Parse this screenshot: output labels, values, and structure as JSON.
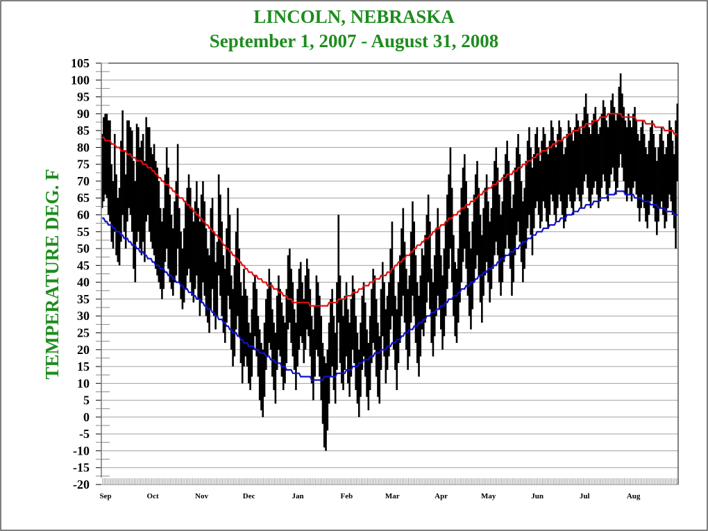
{
  "chart_data": {
    "type": "bar",
    "title": "LINCOLN, NEBRASKA",
    "subtitle": "September 1, 2007 - August 31,  2008",
    "ylabel": "TEMPERATURE DEG. F",
    "xlabel": "",
    "ylim": [
      -20,
      105
    ],
    "ytick_step": 5,
    "grid": true,
    "start_date": "2007-09-01",
    "months": [
      "Sep",
      "Oct",
      "Nov",
      "Dec",
      "Jan",
      "Feb",
      "Mar",
      "Apr",
      "May",
      "Jun",
      "Jul",
      "Aug"
    ],
    "month_days": [
      30,
      31,
      30,
      31,
      31,
      29,
      31,
      30,
      31,
      30,
      31,
      31
    ],
    "colors": {
      "title": "#1e8c1e",
      "daily_range": "#000000",
      "normal_high": "#e01010",
      "normal_low": "#1010c8",
      "grid": "#a0a0a0"
    },
    "daily_high": [
      84,
      89,
      90,
      90,
      88,
      88,
      75,
      70,
      84,
      72,
      65,
      68,
      82,
      91,
      79,
      72,
      88,
      88,
      86,
      85,
      76,
      70,
      87,
      86,
      80,
      82,
      84,
      76,
      89,
      86,
      86,
      80,
      78,
      81,
      76,
      74,
      70,
      62,
      58,
      62,
      72,
      80,
      74,
      66,
      60,
      56,
      64,
      70,
      81,
      62,
      55,
      50,
      56,
      64,
      68,
      72,
      68,
      62,
      58,
      64,
      70,
      62,
      58,
      66,
      70,
      64,
      56,
      50,
      48,
      62,
      65,
      55,
      46,
      52,
      72,
      66,
      58,
      48,
      44,
      56,
      68,
      60,
      42,
      38,
      45,
      55,
      62,
      50,
      40,
      36,
      44,
      38,
      36,
      28,
      25,
      32,
      40,
      42,
      38,
      30,
      26,
      22,
      20,
      28,
      35,
      38,
      44,
      40,
      32,
      28,
      25,
      36,
      42,
      38,
      34,
      30,
      28,
      38,
      48,
      50,
      44,
      40,
      32,
      28,
      38,
      44,
      46,
      40,
      35,
      42,
      47,
      44,
      38,
      30,
      26,
      33,
      42,
      40,
      36,
      30,
      22,
      18,
      16,
      20,
      28,
      35,
      38,
      30,
      25,
      40,
      60,
      42,
      35,
      30,
      36,
      40,
      32,
      28,
      35,
      42,
      38,
      30,
      25,
      20,
      28,
      36,
      40,
      34,
      26,
      22,
      30,
      38,
      44,
      42,
      35,
      28,
      24,
      38,
      46,
      40,
      32,
      36,
      40,
      50,
      58,
      44,
      36,
      32,
      40,
      48,
      56,
      62,
      52,
      44,
      38,
      42,
      55,
      64,
      58,
      48,
      40,
      36,
      42,
      50,
      48,
      54,
      60,
      66,
      58,
      44,
      40,
      48,
      56,
      62,
      56,
      48,
      42,
      50,
      58,
      66,
      72,
      80,
      68,
      54,
      46,
      44,
      50,
      60,
      68,
      74,
      78,
      70,
      62,
      55,
      50,
      58,
      66,
      72,
      76,
      68,
      60,
      54,
      62,
      68,
      72,
      64,
      58,
      62,
      70,
      76,
      80,
      74,
      66,
      60,
      64,
      72,
      78,
      82,
      76,
      70,
      62,
      66,
      74,
      80,
      84,
      78,
      70,
      64,
      68,
      76,
      82,
      86,
      80,
      74,
      78,
      84,
      86,
      80,
      76,
      82,
      86,
      84,
      80,
      78,
      82,
      88,
      86,
      82,
      80,
      84,
      88,
      86,
      82,
      78,
      80,
      84,
      88,
      86,
      84,
      82,
      86,
      90,
      88,
      86,
      84,
      88,
      92,
      96,
      90,
      86,
      84,
      88,
      90,
      92,
      88,
      84,
      86,
      90,
      94,
      92,
      88,
      86,
      90,
      94,
      96,
      92,
      88,
      90,
      98,
      102,
      96,
      92,
      88,
      86,
      90,
      88,
      86,
      90,
      92,
      88,
      84,
      82,
      86,
      88,
      84,
      80,
      78,
      82,
      86,
      88,
      84,
      80,
      76,
      80,
      84,
      86,
      82,
      78,
      80,
      84,
      88,
      86,
      82,
      78,
      88,
      93
    ],
    "daily_low": [
      62,
      64,
      66,
      65,
      60,
      58,
      52,
      50,
      55,
      48,
      46,
      45,
      52,
      60,
      55,
      50,
      58,
      62,
      60,
      55,
      44,
      40,
      52,
      55,
      50,
      48,
      52,
      46,
      58,
      60,
      55,
      52,
      50,
      48,
      44,
      42,
      40,
      38,
      35,
      38,
      46,
      50,
      44,
      40,
      38,
      36,
      40,
      42,
      50,
      40,
      35,
      32,
      34,
      38,
      42,
      44,
      40,
      36,
      34,
      38,
      42,
      35,
      30,
      34,
      40,
      36,
      30,
      28,
      25,
      32,
      38,
      30,
      26,
      30,
      42,
      36,
      30,
      25,
      22,
      28,
      36,
      32,
      20,
      15,
      18,
      26,
      30,
      24,
      16,
      10,
      15,
      18,
      15,
      10,
      8,
      12,
      20,
      24,
      18,
      12,
      5,
      2,
      0,
      6,
      14,
      18,
      22,
      20,
      12,
      8,
      4,
      14,
      20,
      18,
      12,
      8,
      10,
      16,
      26,
      28,
      22,
      18,
      14,
      8,
      15,
      20,
      24,
      22,
      16,
      20,
      26,
      24,
      18,
      10,
      5,
      12,
      20,
      18,
      12,
      5,
      -2,
      -9,
      -10,
      -4,
      4,
      12,
      15,
      8,
      4,
      14,
      28,
      16,
      10,
      8,
      14,
      18,
      10,
      6,
      12,
      20,
      16,
      8,
      4,
      0,
      6,
      14,
      18,
      12,
      6,
      2,
      8,
      16,
      22,
      20,
      12,
      6,
      4,
      14,
      24,
      18,
      10,
      14,
      18,
      26,
      30,
      20,
      14,
      8,
      16,
      22,
      30,
      36,
      28,
      20,
      14,
      18,
      28,
      36,
      30,
      22,
      16,
      12,
      18,
      26,
      24,
      28,
      34,
      40,
      32,
      22,
      18,
      24,
      30,
      36,
      32,
      26,
      20,
      24,
      30,
      38,
      44,
      50,
      40,
      30,
      24,
      22,
      28,
      34,
      40,
      46,
      50,
      44,
      36,
      30,
      26,
      32,
      40,
      44,
      48,
      42,
      34,
      28,
      36,
      42,
      46,
      40,
      34,
      38,
      44,
      48,
      52,
      48,
      40,
      36,
      40,
      46,
      50,
      54,
      50,
      44,
      36,
      40,
      48,
      54,
      58,
      52,
      46,
      40,
      44,
      50,
      56,
      60,
      54,
      48,
      56,
      62,
      64,
      60,
      56,
      58,
      64,
      62,
      58,
      56,
      60,
      66,
      64,
      60,
      58,
      62,
      66,
      64,
      60,
      56,
      58,
      62,
      66,
      64,
      62,
      60,
      64,
      68,
      66,
      64,
      62,
      66,
      70,
      72,
      68,
      64,
      62,
      66,
      68,
      70,
      66,
      62,
      64,
      68,
      72,
      70,
      66,
      64,
      68,
      72,
      74,
      70,
      66,
      68,
      74,
      78,
      74,
      70,
      66,
      64,
      68,
      66,
      64,
      68,
      70,
      66,
      62,
      58,
      62,
      66,
      62,
      58,
      56,
      60,
      64,
      66,
      62,
      58,
      54,
      58,
      62,
      64,
      60,
      56,
      58,
      62,
      66,
      64,
      60,
      56,
      50,
      70
    ],
    "normal_high": [
      [
        "2007-09-01",
        83
      ],
      [
        "2007-10-01",
        74
      ],
      [
        "2007-11-01",
        60
      ],
      [
        "2007-12-01",
        44
      ],
      [
        "2008-01-01",
        34
      ],
      [
        "2008-01-20",
        33
      ],
      [
        "2008-02-01",
        35
      ],
      [
        "2008-03-01",
        43
      ],
      [
        "2008-04-01",
        56
      ],
      [
        "2008-05-01",
        67
      ],
      [
        "2008-06-01",
        77
      ],
      [
        "2008-07-01",
        86
      ],
      [
        "2008-07-20",
        90
      ],
      [
        "2008-08-01",
        89
      ],
      [
        "2008-08-31",
        84
      ]
    ],
    "normal_low": [
      [
        "2007-09-01",
        59
      ],
      [
        "2007-10-01",
        47
      ],
      [
        "2007-11-01",
        35
      ],
      [
        "2007-12-01",
        22
      ],
      [
        "2008-01-01",
        13
      ],
      [
        "2008-01-15",
        11
      ],
      [
        "2008-02-01",
        13
      ],
      [
        "2008-03-01",
        21
      ],
      [
        "2008-04-01",
        32
      ],
      [
        "2008-05-01",
        43
      ],
      [
        "2008-06-01",
        54
      ],
      [
        "2008-07-01",
        62
      ],
      [
        "2008-07-20",
        66
      ],
      [
        "2008-07-25",
        67
      ],
      [
        "2008-08-01",
        66
      ],
      [
        "2008-08-31",
        60
      ]
    ]
  }
}
